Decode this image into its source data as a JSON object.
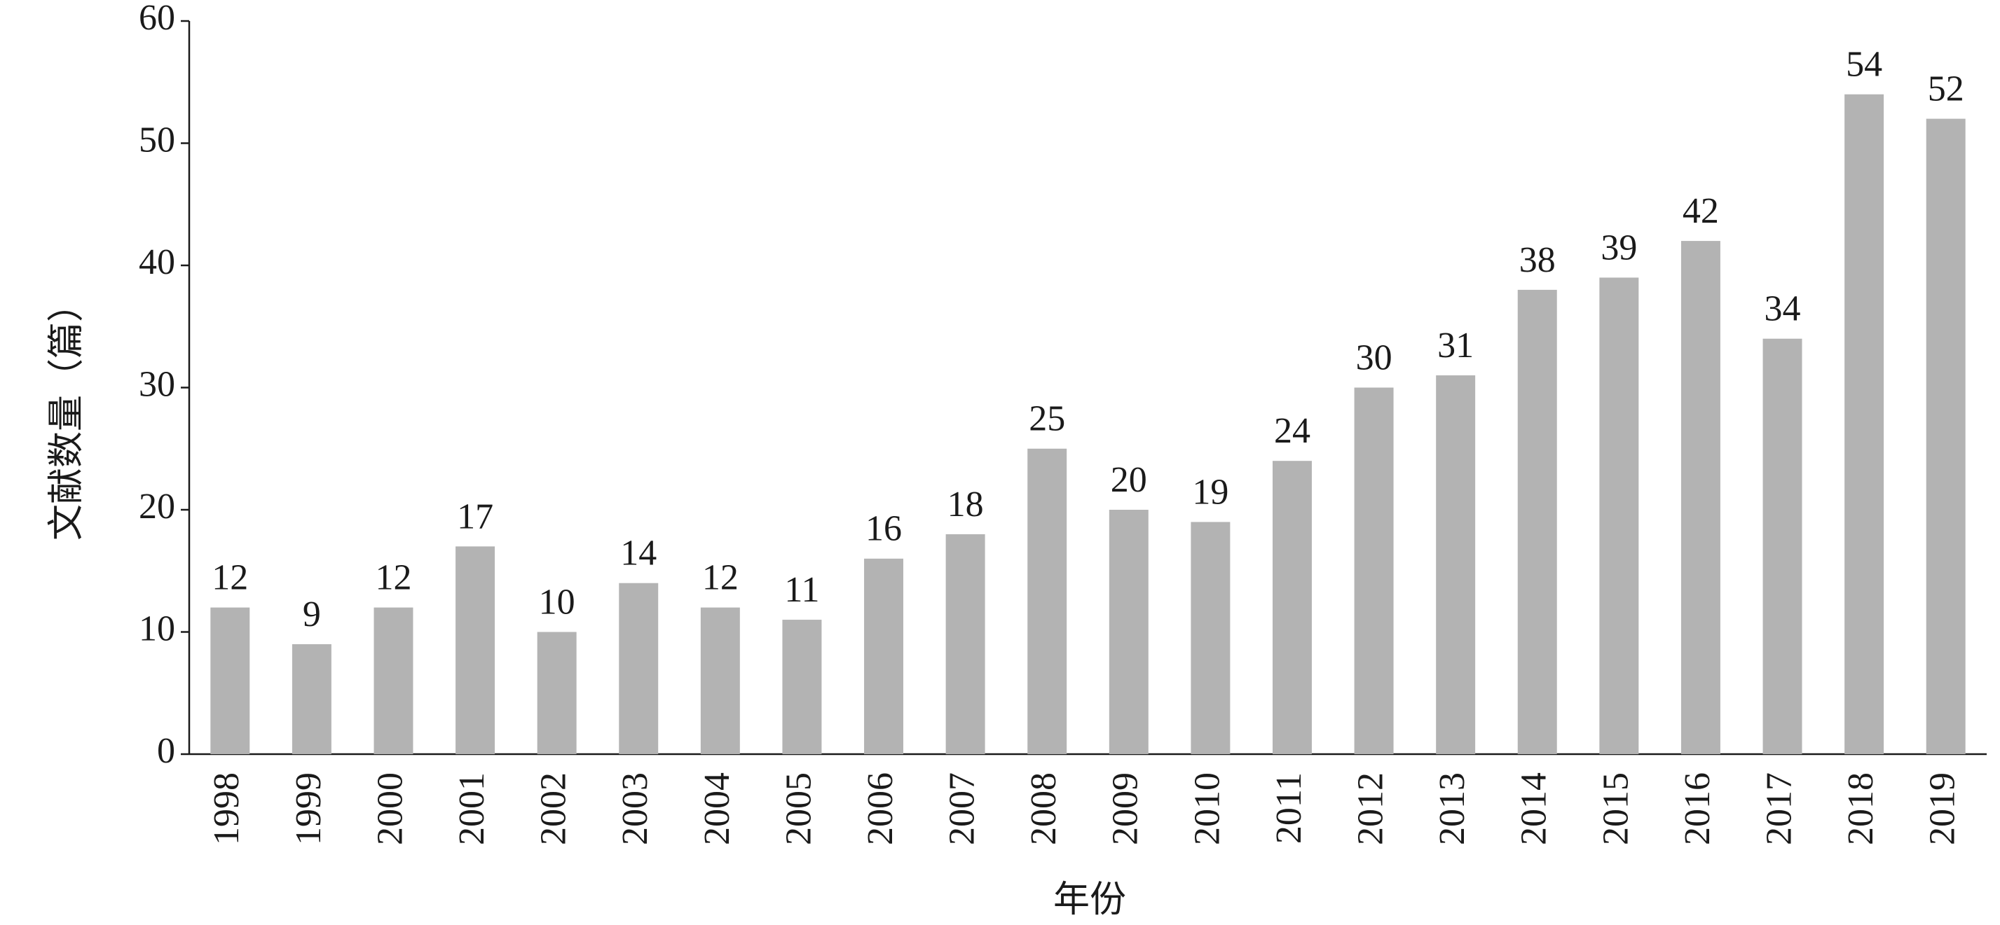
{
  "chart_data": {
    "type": "bar",
    "x_label": "年份",
    "y_label": "文献数量（篇）",
    "categories": [
      "1998",
      "1999",
      "2000",
      "2001",
      "2002",
      "2003",
      "2004",
      "2005",
      "2006",
      "2007",
      "2008",
      "2009",
      "2010",
      "2011",
      "2012",
      "2013",
      "2014",
      "2015",
      "2016",
      "2017",
      "2018",
      "2019"
    ],
    "values": [
      12,
      9,
      12,
      17,
      10,
      14,
      12,
      11,
      16,
      18,
      25,
      20,
      19,
      24,
      30,
      31,
      38,
      39,
      42,
      34,
      54,
      52
    ],
    "color": "#b3b3b3",
    "ylim": [
      0,
      60
    ],
    "yticks": [
      0,
      10,
      20,
      30,
      40,
      50,
      60
    ],
    "grid": false
  }
}
